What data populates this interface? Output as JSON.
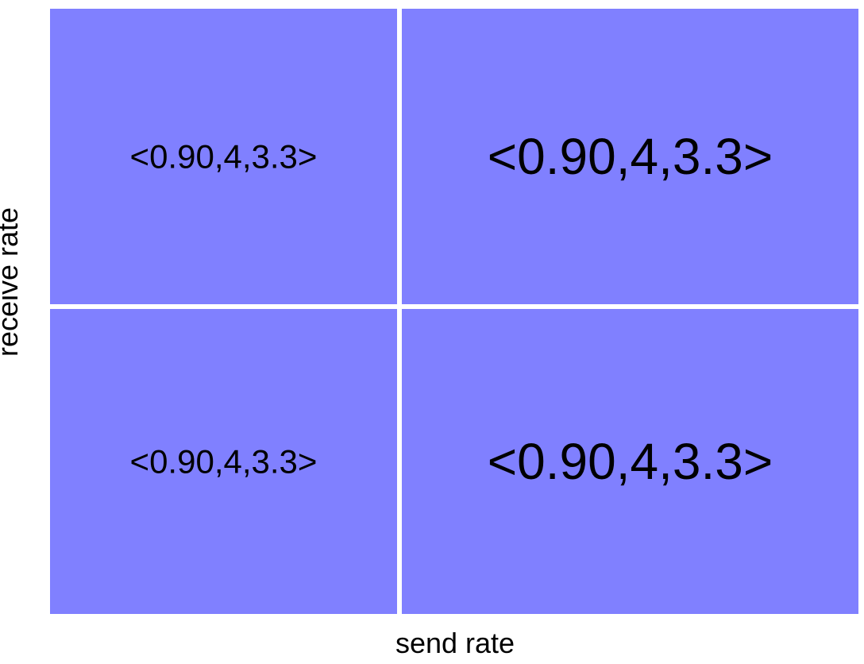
{
  "chart_data": {
    "type": "heatmap",
    "title": "",
    "xlabel": "send rate",
    "ylabel": "receive rate",
    "grid": true,
    "colors": {
      "cell_fill": "#8080ff",
      "grid_line": "#ffffff",
      "text": "#000000"
    },
    "columns": 2,
    "rows": 2,
    "cells": [
      {
        "row": 0,
        "col": 0,
        "label": "<0.90,4,3.3>",
        "emphasis": "normal"
      },
      {
        "row": 0,
        "col": 1,
        "label": "<0.90,4,3.3>",
        "emphasis": "large"
      },
      {
        "row": 1,
        "col": 0,
        "label": "<0.90,4,3.3>",
        "emphasis": "normal"
      },
      {
        "row": 1,
        "col": 1,
        "label": "<0.90,4,3.3>",
        "emphasis": "large"
      }
    ]
  }
}
